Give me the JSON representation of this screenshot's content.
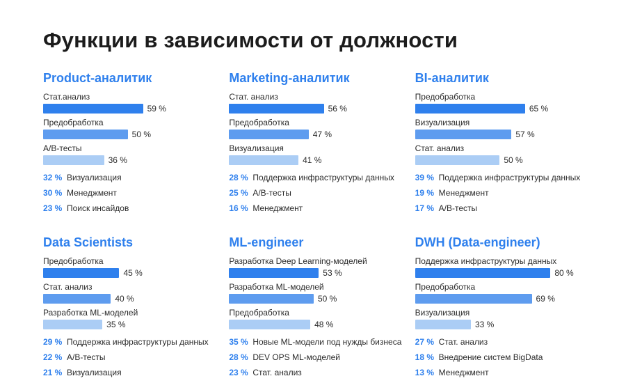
{
  "page_title": "Функции в зависимости от должности",
  "accent_color": "#2f80ed",
  "bar_colors": [
    "#2f80ed",
    "#5e9cef",
    "#abcdf5"
  ],
  "chart_data": [
    {
      "type": "bar",
      "title": "Product-аналитик",
      "bars": [
        {
          "label": "Стат.анализ",
          "value": 59,
          "display": "59 %"
        },
        {
          "label": "Предобработка",
          "value": 50,
          "display": "50 %"
        },
        {
          "label": "A/B-тесты",
          "value": 36,
          "display": "36 %"
        }
      ],
      "list": [
        {
          "value": "32 %",
          "label": "Визуализация"
        },
        {
          "value": "30 %",
          "label": "Менеджмент"
        },
        {
          "value": "23 %",
          "label": "Поиск инсайдов"
        }
      ]
    },
    {
      "type": "bar",
      "title": "Marketing-аналитик",
      "bars": [
        {
          "label": "Стат. анализ",
          "value": 56,
          "display": "56 %"
        },
        {
          "label": "Предобработка",
          "value": 47,
          "display": "47 %"
        },
        {
          "label": "Визуализация",
          "value": 41,
          "display": "41 %"
        }
      ],
      "list": [
        {
          "value": "28 %",
          "label": "Поддержка инфраструктуры данных"
        },
        {
          "value": "25 %",
          "label": "A/B-тесты"
        },
        {
          "value": "16 %",
          "label": "Менеджмент"
        }
      ]
    },
    {
      "type": "bar",
      "title": "BI-аналитик",
      "bars": [
        {
          "label": "Предобработка",
          "value": 65,
          "display": "65 %"
        },
        {
          "label": "Визуализация",
          "value": 57,
          "display": "57 %"
        },
        {
          "label": "Стат. анализ",
          "value": 50,
          "display": "50 %"
        }
      ],
      "list": [
        {
          "value": "39 %",
          "label": "Поддержка инфраструктуры данных"
        },
        {
          "value": "19 %",
          "label": "Менеджмент"
        },
        {
          "value": "17 %",
          "label": "A/B-тесты"
        }
      ]
    },
    {
      "type": "bar",
      "title": "Data Scientists",
      "bars": [
        {
          "label": "Предобработка",
          "value": 45,
          "display": "45 %"
        },
        {
          "label": "Стат. анализ",
          "value": 40,
          "display": "40 %"
        },
        {
          "label": "Разработка ML-моделей",
          "value": 35,
          "display": "35 %"
        }
      ],
      "list": [
        {
          "value": "29 %",
          "label": "Поддержка инфраструктуры данных"
        },
        {
          "value": "22 %",
          "label": "A/B-тесты"
        },
        {
          "value": "21 %",
          "label": "Визуализация"
        }
      ]
    },
    {
      "type": "bar",
      "title": "ML-engineer",
      "bars": [
        {
          "label": "Разработка Deep Learning-моделей",
          "value": 53,
          "display": "53 %"
        },
        {
          "label": "Разработка ML-моделей",
          "value": 50,
          "display": "50 %"
        },
        {
          "label": "Предобработка",
          "value": 48,
          "display": "48 %"
        }
      ],
      "list": [
        {
          "value": "35 %",
          "label": "Новые ML-модели под нужды бизнеса"
        },
        {
          "value": "28 %",
          "label": "DEV OPS ML-моделей"
        },
        {
          "value": "23 %",
          "label": "Стат. анализ"
        }
      ]
    },
    {
      "type": "bar",
      "title": "DWH (Data-engineer)",
      "bars": [
        {
          "label": "Поддержка инфраструктуры данных",
          "value": 80,
          "display": "80 %"
        },
        {
          "label": "Предобработка",
          "value": 69,
          "display": "69 %"
        },
        {
          "label": "Визуализация",
          "value": 33,
          "display": "33 %"
        }
      ],
      "list": [
        {
          "value": "27 %",
          "label": "Стат. анализ"
        },
        {
          "value": "18 %",
          "label": "Внедрение систем BigData"
        },
        {
          "value": "13 %",
          "label": "Менеджмент"
        }
      ]
    }
  ]
}
